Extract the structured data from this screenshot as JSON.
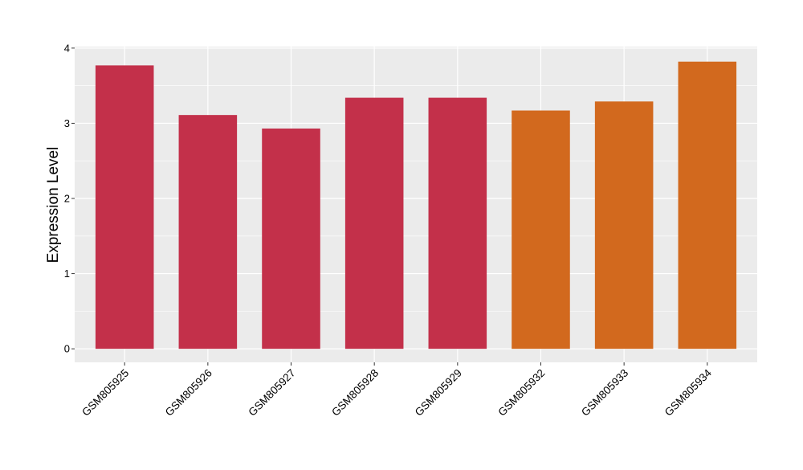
{
  "chart_data": {
    "type": "bar",
    "title": "",
    "xlabel": "",
    "ylabel": "Expression Level",
    "categories": [
      "GSM805925",
      "GSM805926",
      "GSM805927",
      "GSM805928",
      "GSM805929",
      "GSM805932",
      "GSM805933",
      "GSM805934"
    ],
    "values": [
      3.77,
      3.11,
      2.93,
      3.34,
      3.34,
      3.17,
      3.29,
      3.82
    ],
    "bar_colors": [
      "#c3304a",
      "#c3304a",
      "#c3304a",
      "#c3304a",
      "#c3304a",
      "#d2691e",
      "#d2691e",
      "#d2691e"
    ],
    "ylim": [
      -0.18,
      4.02
    ],
    "yticks": [
      0,
      1,
      2,
      3,
      4
    ],
    "grid": true,
    "panel_background": "#ebebeb",
    "grid_color": "#ffffff"
  }
}
